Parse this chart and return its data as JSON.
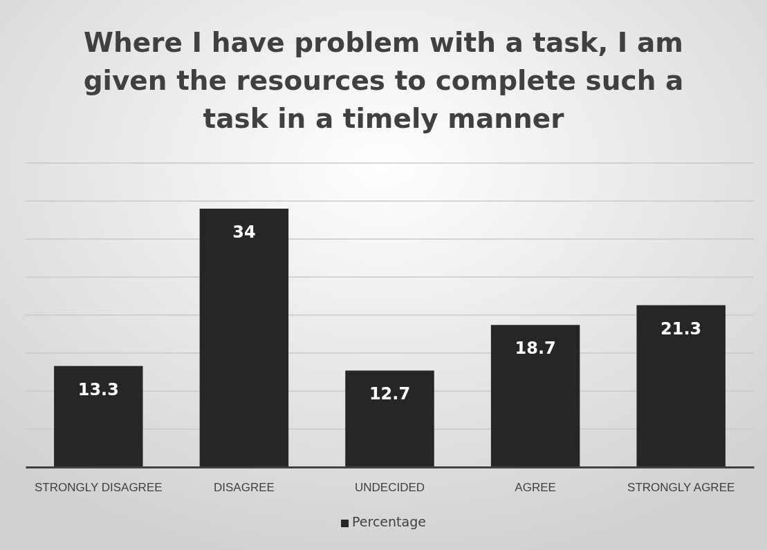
{
  "chart_data": {
    "type": "bar",
    "title": "Where I have problem with a task, I am given the resources to complete such a task in a timely manner",
    "categories": [
      "STRONGLY DISAGREE",
      "DISAGREE",
      "UNDECIDED",
      "AGREE",
      "STRONGLY AGREE"
    ],
    "series": [
      {
        "name": "Percentage",
        "color": "#262626",
        "values": [
          13.3,
          34,
          12.7,
          18.7,
          21.3
        ]
      }
    ],
    "ylim": [
      0,
      40
    ],
    "yticks": [
      {
        "value": 0,
        "label": null
      },
      {
        "value": 5,
        "label": null
      },
      {
        "value": 10,
        "label": null
      },
      {
        "value": 15,
        "label": null
      },
      {
        "value": 20,
        "label": null
      },
      {
        "value": 25,
        "label": null
      },
      {
        "value": 30,
        "label": null
      },
      {
        "value": 35,
        "label": null
      },
      {
        "value": 40,
        "label": null
      }
    ],
    "tick_labels": "x",
    "grid": "y",
    "legend": "bottom",
    "data_labels": true
  }
}
